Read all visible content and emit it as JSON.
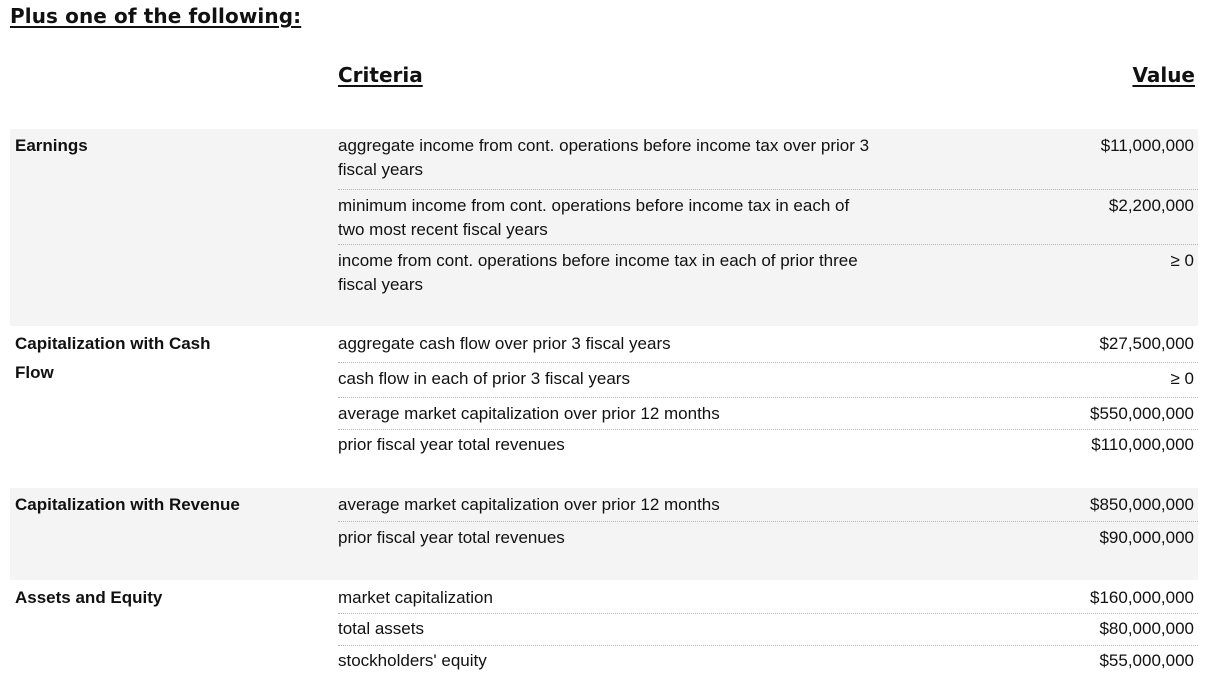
{
  "heading": "Plus one of the following:",
  "columns": {
    "criteria": "Criteria",
    "value": "Value"
  },
  "sections": [
    {
      "label": "Earnings",
      "rows": [
        {
          "criteria": "aggregate income from cont. operations before income tax over prior 3 fiscal years",
          "value": "$11,000,000"
        },
        {
          "criteria": "minimum income from cont. operations before income tax in each of two most recent fiscal years",
          "value": "$2,200,000"
        },
        {
          "criteria": "income from cont. operations before income tax in each of prior three fiscal years",
          "value": "≥ 0"
        }
      ]
    },
    {
      "label": "Capitalization with Cash Flow",
      "rows": [
        {
          "criteria": "aggregate cash flow over prior 3 fiscal years",
          "value": "$27,500,000"
        },
        {
          "criteria": "cash flow in each of prior 3 fiscal years",
          "value": "≥ 0"
        },
        {
          "criteria": "average market capitalization over prior 12 months",
          "value": "$550,000,000"
        },
        {
          "criteria": "prior fiscal year total revenues",
          "value": "$110,000,000"
        }
      ]
    },
    {
      "label": "Capitalization with Revenue",
      "rows": [
        {
          "criteria": "average market capitalization over prior 12 months",
          "value": "$850,000,000"
        },
        {
          "criteria": "prior fiscal year total revenues",
          "value": "$90,000,000"
        }
      ]
    },
    {
      "label": "Assets and Equity",
      "rows": [
        {
          "criteria": "market capitalization",
          "value": "$160,000,000"
        },
        {
          "criteria": "total assets",
          "value": "$80,000,000"
        },
        {
          "criteria": "stockholders' equity",
          "value": "$55,000,000"
        }
      ]
    }
  ]
}
